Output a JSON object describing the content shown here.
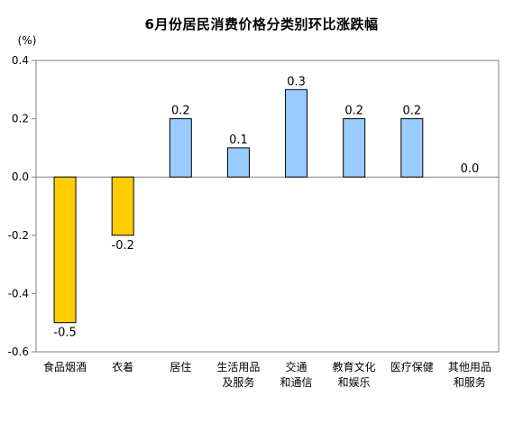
{
  "chart_data": {
    "type": "bar",
    "title": "6月份居民消费价格分类别环比涨跌幅",
    "ylabel": "(%)",
    "xlabel": "",
    "ylim": [
      -0.6,
      0.4
    ],
    "yticks": [
      "0.4",
      "0.2",
      "0.0",
      "-0.2",
      "-0.4",
      "-0.6"
    ],
    "ytick_values": [
      0.4,
      0.2,
      0.0,
      -0.2,
      -0.4,
      -0.6
    ],
    "grid": false,
    "categories": [
      [
        "食品烟酒"
      ],
      [
        "衣着"
      ],
      [
        "居住"
      ],
      [
        "生活用品",
        "及服务"
      ],
      [
        "交通",
        "和通信"
      ],
      [
        "教育文化",
        "和娱乐"
      ],
      [
        "医疗保健"
      ],
      [
        "其他用品",
        "和服务"
      ]
    ],
    "values": [
      -0.5,
      -0.2,
      0.2,
      0.1,
      0.3,
      0.2,
      0.2,
      0.0
    ],
    "value_labels": [
      "-0.5",
      "-0.2",
      "0.2",
      "0.1",
      "0.3",
      "0.2",
      "0.2",
      "0.0"
    ],
    "colors": {
      "negative_fill": "#FFCC00",
      "negative_stroke": "#000000",
      "positive_fill": "#99CCFF",
      "positive_stroke": "#000000",
      "axis": "#808080"
    }
  }
}
